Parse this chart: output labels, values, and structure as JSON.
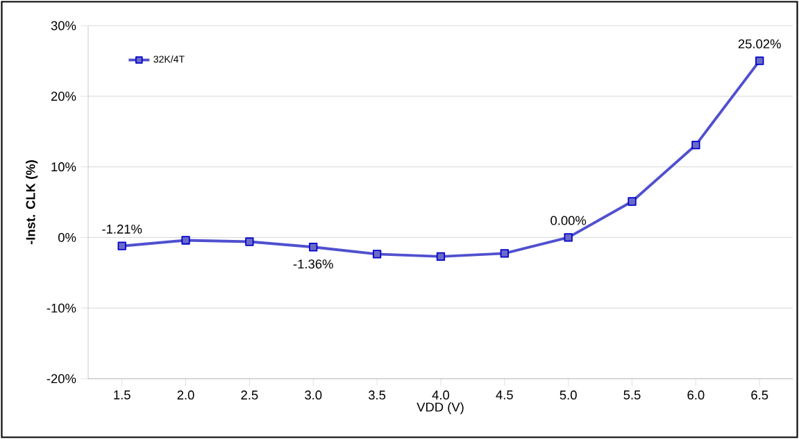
{
  "chart_data": {
    "type": "line",
    "xlabel": "VDD (V)",
    "ylabel": "-Inst. CLK (%)",
    "categories": [
      "1.5",
      "2.0",
      "2.5",
      "3.0",
      "3.5",
      "4.0",
      "4.5",
      "5.0",
      "5.5",
      "6.0",
      "6.5"
    ],
    "series": [
      {
        "name": "32K/4T",
        "color": "#5050d0",
        "values": [
          -1.21,
          -0.4,
          -0.6,
          -1.36,
          -2.35,
          -2.7,
          -2.25,
          0.0,
          5.1,
          13.1,
          25.02
        ],
        "value_labels": [
          "-1.21%",
          null,
          null,
          "-1.36%",
          null,
          null,
          null,
          "0.00%",
          null,
          null,
          "25.02%"
        ]
      }
    ],
    "ylim": [
      -20,
      30
    ],
    "yticks": [
      {
        "value": -20,
        "label": "-20%"
      },
      {
        "value": -10,
        "label": "-10%"
      },
      {
        "value": 0,
        "label": "0%"
      },
      {
        "value": 10,
        "label": "10%"
      },
      {
        "value": 20,
        "label": "20%"
      },
      {
        "value": 30,
        "label": "30%"
      }
    ],
    "grid": "y",
    "legend": "top left",
    "marker": "square",
    "line_style": "solid"
  }
}
